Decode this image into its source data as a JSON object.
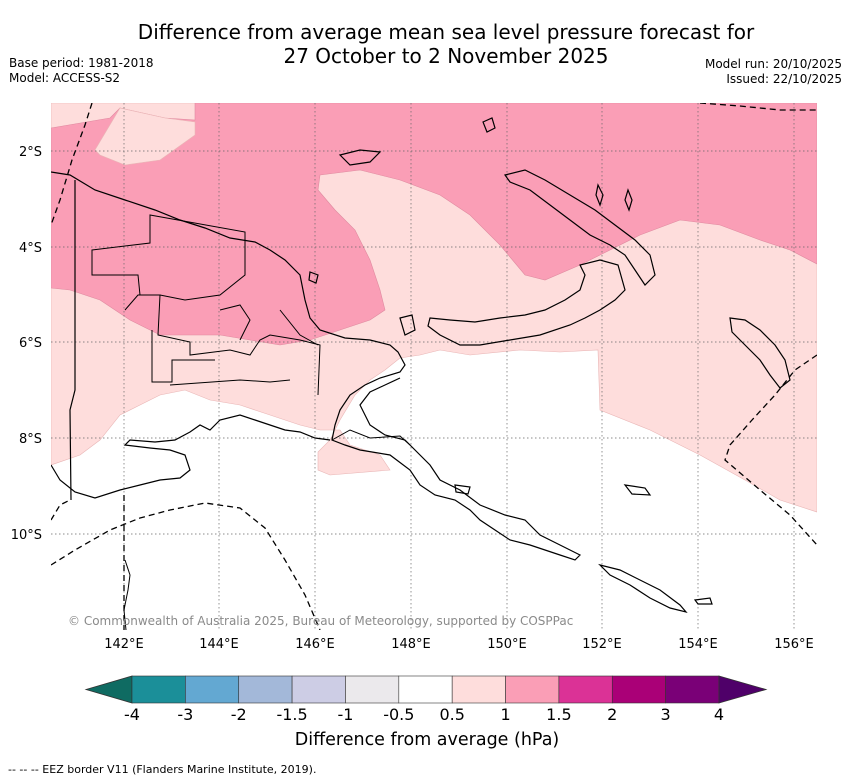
{
  "title": {
    "line1": "Difference from average mean sea level pressure forecast for",
    "line2": "27 October to 2 November 2025"
  },
  "meta_left": {
    "base_period": "Base period: 1981-2018",
    "model": "Model: ACCESS-S2"
  },
  "meta_right": {
    "model_run": "Model run: 20/10/2025",
    "issued": "Issued: 22/10/2025"
  },
  "map": {
    "lat_labels": [
      "2°S",
      "4°S",
      "6°S",
      "8°S",
      "10°S"
    ],
    "lon_labels": [
      "142°E",
      "144°E",
      "146°E",
      "148°E",
      "150°E",
      "152°E",
      "154°E",
      "156°E"
    ],
    "copyright": "© Commonwealth of Australia 2025, Bureau of Meteorology, supported by COSPPac"
  },
  "colorbar": {
    "title": "Difference from average (hPa)",
    "labels": [
      "-4",
      "-3",
      "-2",
      "-1.5",
      "-1",
      "-0.5",
      "0.5",
      "1",
      "1.5",
      "2",
      "3",
      "4"
    ],
    "colors": [
      "#0f6b62",
      "#1b8f99",
      "#63a8d2",
      "#a3b8d9",
      "#cdcde5",
      "#ebe9ec",
      "#ffffff",
      "#fedddc",
      "#fa9eb6",
      "#db3296",
      "#aa0077",
      "#7a0077",
      "#4f0069"
    ]
  },
  "footnote": "--  --  -- EEZ border V11 (Flanders Marine Institute, 2019)."
}
